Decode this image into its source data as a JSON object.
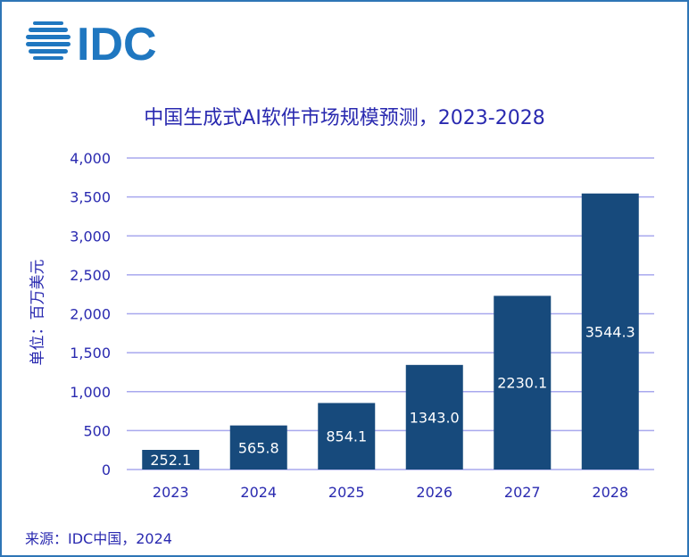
{
  "logo_text": "IDC",
  "colors": {
    "bar": "#174a7c",
    "text": "#2a2ab0",
    "grid": "#a8a8ee",
    "logo": "#1f77c0",
    "border": "#2e75b6"
  },
  "source": "来源：IDC中国，2024",
  "chart_data": {
    "type": "bar",
    "title": "中国生成式AI软件市场规模预测，2023-2028",
    "ylabel": "单位：百万美元",
    "xlabel": "",
    "categories": [
      "2023",
      "2024",
      "2025",
      "2026",
      "2027",
      "2028"
    ],
    "values": [
      252.1,
      565.8,
      854.1,
      1343.0,
      2230.1,
      3544.3
    ],
    "data_labels": [
      "252.1",
      "565.8",
      "854.1",
      "1343.0",
      "2230.1",
      "3544.3"
    ],
    "ylim": [
      0,
      4000
    ],
    "yticks": [
      "0",
      "500",
      "1,000",
      "1,500",
      "2,000",
      "2,500",
      "3,000",
      "3,500",
      "4,000"
    ],
    "grid": true,
    "legend": "none"
  }
}
